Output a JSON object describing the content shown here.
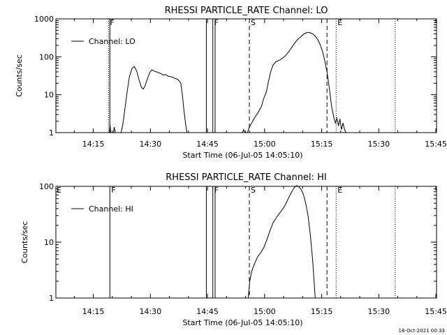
{
  "chart_data": [
    {
      "type": "line",
      "title": "RHESSI  PARTICLE_RATE  Channel:  LO",
      "xlabel": "Start Time (06-Jul-05 14:05:10)",
      "ylabel": "Counts/sec",
      "yscale": "log",
      "ylim": [
        1,
        1000
      ],
      "xlim_minutes": [
        5.17,
        105.17
      ],
      "y_ticks": [
        {
          "v": 1,
          "label": "1"
        },
        {
          "v": 10,
          "label": "10"
        },
        {
          "v": 100,
          "label": "100"
        },
        {
          "v": 1000,
          "label": "1000"
        }
      ],
      "x_ticks": [
        {
          "m": 15,
          "label": "14:15"
        },
        {
          "m": 30,
          "label": "14:30"
        },
        {
          "m": 45,
          "label": "14:45"
        },
        {
          "m": 60,
          "label": "15:00"
        },
        {
          "m": 75,
          "label": "15:15"
        },
        {
          "m": 90,
          "label": "15:30"
        },
        {
          "m": 105,
          "label": "15:45"
        }
      ],
      "legend": {
        "label": "Channel: LO",
        "position": "top-left"
      },
      "series": [
        {
          "name": "Channel: LO",
          "segments": [
            [
              [
                19.2,
                1
              ],
              [
                19.4,
                1.6
              ],
              [
                19.6,
                1
              ],
              [
                20.3,
                1
              ],
              [
                20.5,
                1.4
              ],
              [
                20.8,
                1
              ],
              [
                22.3,
                1
              ],
              [
                22.7,
                1.5
              ],
              [
                23.0,
                2.5
              ],
              [
                23.5,
                6
              ],
              [
                24.0,
                14
              ],
              [
                24.5,
                30
              ],
              [
                25.2,
                50
              ],
              [
                25.8,
                55
              ],
              [
                26.4,
                42
              ],
              [
                27.0,
                25
              ],
              [
                27.6,
                16
              ],
              [
                28.1,
                14
              ],
              [
                28.6,
                17
              ],
              [
                29.2,
                26
              ],
              [
                29.8,
                38
              ],
              [
                30.4,
                45
              ],
              [
                31.0,
                42
              ],
              [
                31.6,
                40
              ],
              [
                32.2,
                38
              ],
              [
                32.8,
                36
              ],
              [
                33.4,
                33
              ],
              [
                34.0,
                34
              ],
              [
                34.6,
                31
              ],
              [
                35.2,
                30
              ],
              [
                35.8,
                29
              ],
              [
                36.4,
                27
              ],
              [
                37.0,
                26
              ],
              [
                37.6,
                23
              ],
              [
                38.0,
                20
              ],
              [
                38.4,
                10
              ],
              [
                38.8,
                4
              ],
              [
                39.2,
                1.8
              ],
              [
                39.6,
                1
              ]
            ],
            [
              [
                54.2,
                1
              ],
              [
                54.5,
                1.2
              ],
              [
                54.8,
                1
              ],
              [
                55.5,
                1
              ],
              [
                56.0,
                1.4
              ],
              [
                56.6,
                1.8
              ],
              [
                57.4,
                2.5
              ],
              [
                58.4,
                3.5
              ],
              [
                59.2,
                5
              ],
              [
                59.8,
                8
              ],
              [
                60.5,
                12
              ],
              [
                61.0,
                22
              ],
              [
                61.6,
                40
              ],
              [
                62.2,
                60
              ],
              [
                63.0,
                75
              ],
              [
                63.8,
                80
              ],
              [
                64.6,
                90
              ],
              [
                65.4,
                105
              ],
              [
                66.2,
                130
              ],
              [
                67.0,
                170
              ],
              [
                67.8,
                220
              ],
              [
                68.6,
                280
              ],
              [
                69.4,
                330
              ],
              [
                70.2,
                390
              ],
              [
                71.0,
                430
              ],
              [
                71.6,
                440
              ],
              [
                72.2,
                420
              ],
              [
                72.8,
                390
              ],
              [
                73.4,
                340
              ],
              [
                74.0,
                280
              ],
              [
                74.6,
                210
              ],
              [
                75.2,
                140
              ],
              [
                75.8,
                80
              ],
              [
                76.4,
                40
              ],
              [
                77.0,
                15
              ],
              [
                77.6,
                5
              ],
              [
                78.2,
                2.5
              ],
              [
                78.6,
                1.8
              ],
              [
                79.0,
                2.4
              ],
              [
                79.4,
                1.5
              ],
              [
                79.8,
                2.3
              ],
              [
                80.2,
                1.2
              ],
              [
                80.6,
                1.8
              ],
              [
                81.0,
                1.2
              ],
              [
                81.4,
                1
              ]
            ]
          ]
        }
      ],
      "vlines": [
        {
          "m": 19.0,
          "style": "dotted",
          "label": "F"
        },
        {
          "m": 19.35,
          "style": "solid",
          "label": ""
        },
        {
          "m": 44.7,
          "style": "solid",
          "label": ""
        },
        {
          "m": 46.4,
          "style": "solid",
          "label": "F"
        },
        {
          "m": 47.0,
          "style": "solid",
          "label": ""
        },
        {
          "m": 56.0,
          "style": "dashed",
          "label": "S"
        },
        {
          "m": 76.4,
          "style": "dashed",
          "label": ""
        },
        {
          "m": 78.8,
          "style": "dotted",
          "label": "E"
        },
        {
          "m": 94.3,
          "style": "dotted",
          "label": ""
        }
      ]
    },
    {
      "type": "line",
      "title": "RHESSI  PARTICLE_RATE  Channel:  HI",
      "xlabel": "Start Time (06-Jul-05 14:05:10)",
      "ylabel": "Counts/sec",
      "yscale": "log",
      "ylim": [
        1,
        100
      ],
      "xlim_minutes": [
        5.17,
        105.17
      ],
      "y_ticks": [
        {
          "v": 1,
          "label": "1"
        },
        {
          "v": 10,
          "label": "10"
        },
        {
          "v": 100,
          "label": "100"
        }
      ],
      "x_ticks": [
        {
          "m": 15,
          "label": "14:15"
        },
        {
          "m": 30,
          "label": "14:30"
        },
        {
          "m": 45,
          "label": "14:45"
        },
        {
          "m": 60,
          "label": "15:00"
        },
        {
          "m": 75,
          "label": "15:15"
        },
        {
          "m": 90,
          "label": "15:30"
        },
        {
          "m": 105,
          "label": "15:45"
        }
      ],
      "legend": {
        "label": "Channel: HI",
        "position": "top-left"
      },
      "corner_label": "E",
      "series": [
        {
          "name": "Channel: HI",
          "segments": [
            [
              [
                55.7,
                1
              ],
              [
                56.1,
                2
              ],
              [
                56.6,
                3
              ],
              [
                57.4,
                4.2
              ],
              [
                58.2,
                5.5
              ],
              [
                59.0,
                6.5
              ],
              [
                59.8,
                8
              ],
              [
                60.6,
                11
              ],
              [
                61.4,
                16
              ],
              [
                62.2,
                22
              ],
              [
                63.0,
                27
              ],
              [
                63.8,
                32
              ],
              [
                64.6,
                38
              ],
              [
                65.4,
                46
              ],
              [
                66.2,
                60
              ],
              [
                67.0,
                77
              ],
              [
                67.8,
                95
              ],
              [
                68.4,
                103
              ],
              [
                69.0,
                98
              ],
              [
                69.6,
                88
              ],
              [
                70.2,
                72
              ],
              [
                70.8,
                50
              ],
              [
                71.4,
                30
              ],
              [
                72.0,
                14
              ],
              [
                72.6,
                5
              ],
              [
                73.0,
                2
              ],
              [
                73.3,
                1
              ]
            ]
          ]
        }
      ],
      "vlines": [
        {
          "m": 19.35,
          "style": "solid",
          "label": "F"
        },
        {
          "m": 44.7,
          "style": "solid",
          "label": ""
        },
        {
          "m": 46.4,
          "style": "solid",
          "label": "F"
        },
        {
          "m": 47.0,
          "style": "solid",
          "label": ""
        },
        {
          "m": 56.0,
          "style": "dashed",
          "label": "S"
        },
        {
          "m": 76.4,
          "style": "dashed",
          "label": ""
        },
        {
          "m": 78.8,
          "style": "dotted",
          "label": "E"
        },
        {
          "m": 94.3,
          "style": "dotted",
          "label": ""
        }
      ]
    }
  ],
  "footer": {
    "timestamp": "18-Oct-2021 00:33"
  }
}
